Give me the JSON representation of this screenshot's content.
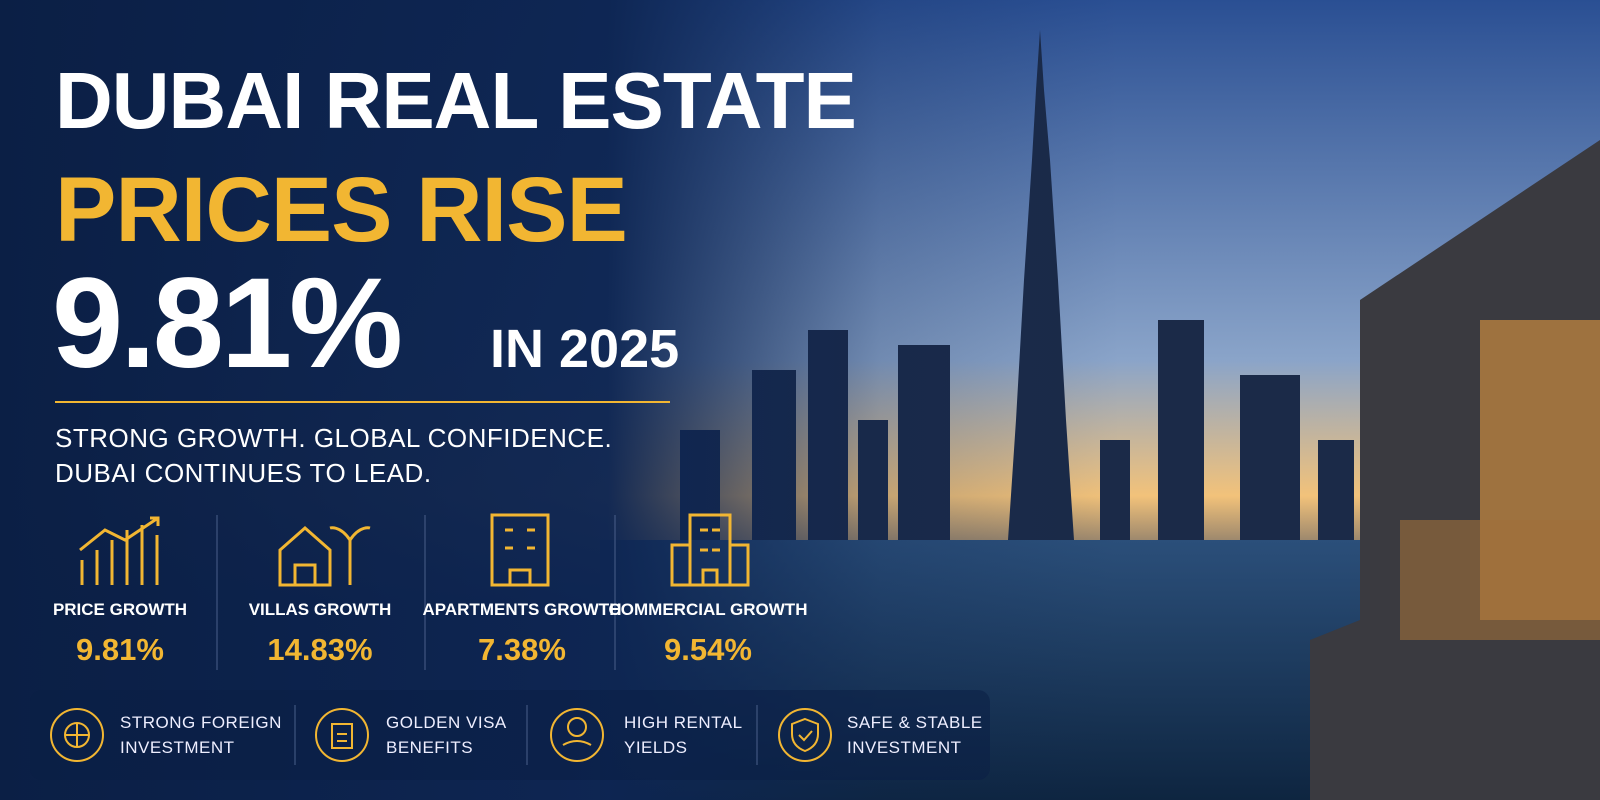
{
  "headline": {
    "line1": "DUBAI REAL ESTATE",
    "line2": "PRICES RISE",
    "figure": "9.81%",
    "suffix": "IN 2025"
  },
  "tagline": {
    "line1": "STRONG GROWTH. GLOBAL CONFIDENCE.",
    "line2": "DUBAI CONTINUES TO LEAD."
  },
  "stats": [
    {
      "label": "PRICE GROWTH",
      "value": "9.81%"
    },
    {
      "label": "VILLAS GROWTH",
      "value": "14.83%"
    },
    {
      "label": "APARTMENTS GROWTH",
      "value": "7.38%"
    },
    {
      "label": "COMMERCIAL GROWTH",
      "value": "9.54%"
    }
  ],
  "features": [
    {
      "lines": [
        "STRONG FOREIGN",
        "INVESTMENT"
      ]
    },
    {
      "lines": [
        "GOLDEN VISA",
        "BENEFITS"
      ]
    },
    {
      "lines": [
        "HIGH RENTAL",
        "YIELDS"
      ]
    },
    {
      "lines": [
        "SAFE & STABLE",
        "INVESTMENT"
      ]
    }
  ]
}
